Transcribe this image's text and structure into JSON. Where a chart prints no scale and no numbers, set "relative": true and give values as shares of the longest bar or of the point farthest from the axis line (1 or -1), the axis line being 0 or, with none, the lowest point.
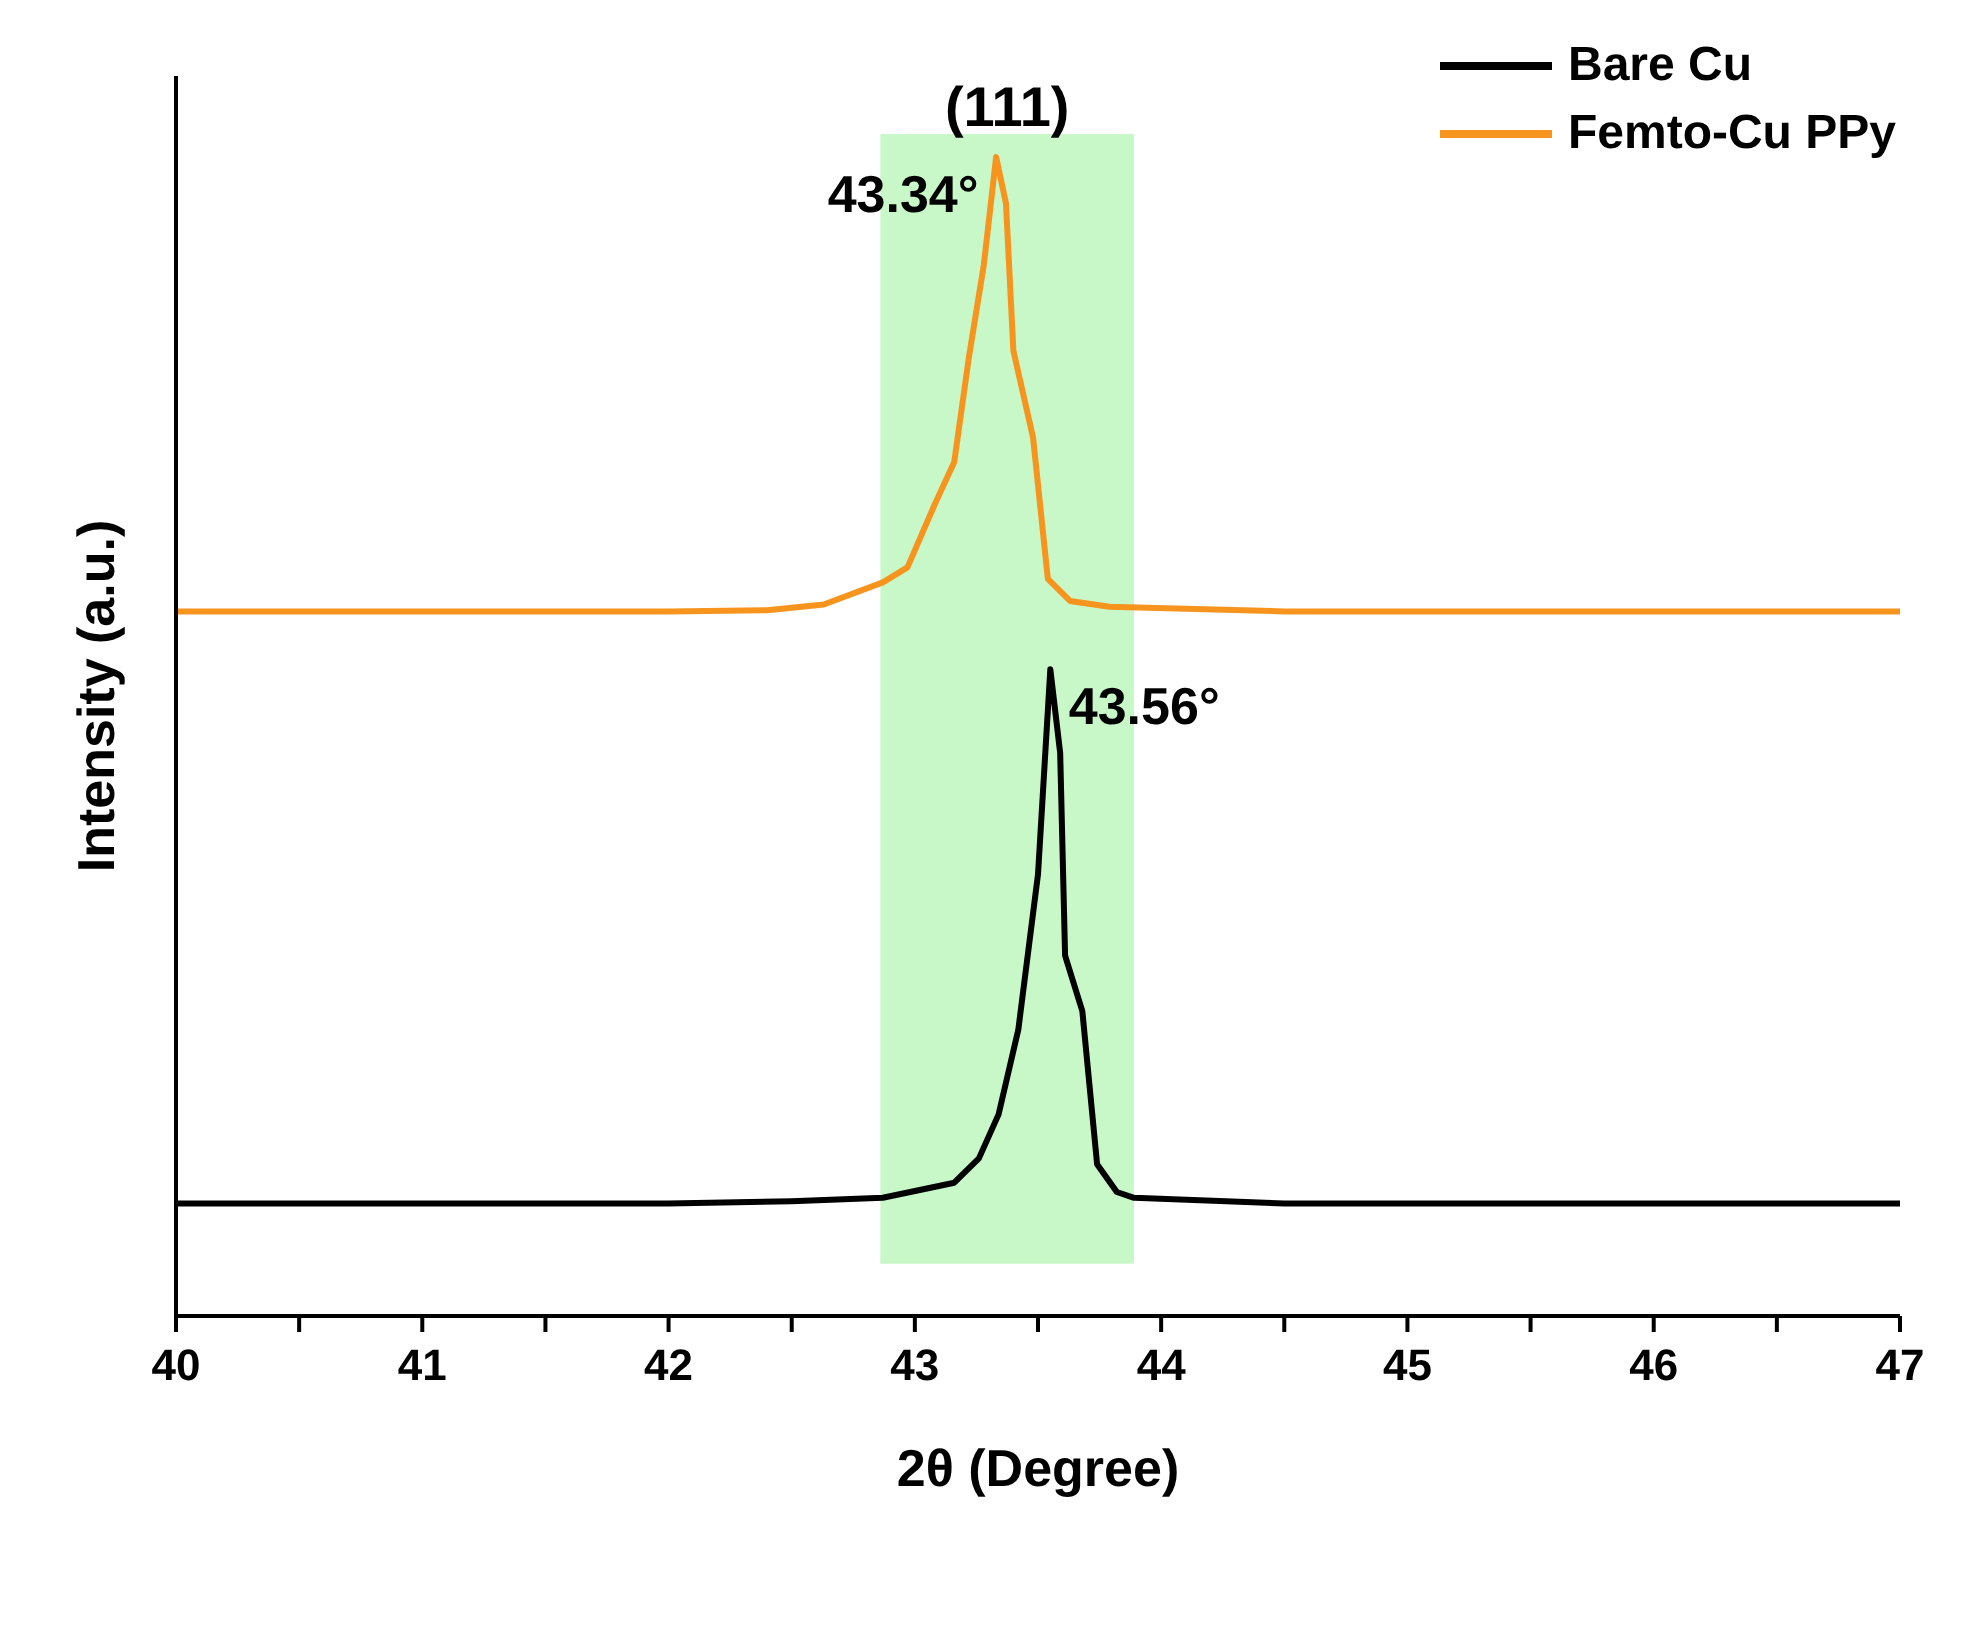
{
  "chart_data": {
    "type": "line",
    "xlabel": "2θ (Degree)",
    "ylabel": "Intensity (a.u.)",
    "relative": true,
    "xlim": [
      40,
      47
    ],
    "xticks": [
      40,
      {
        "value": 40.5,
        "label": null
      },
      41,
      {
        "value": 41.5,
        "label": null
      },
      42,
      {
        "value": 42.5,
        "label": null
      },
      43,
      {
        "value": 43.5,
        "label": null
      },
      44,
      {
        "value": 44.5,
        "label": null
      },
      45,
      {
        "value": 45.5,
        "label": null
      },
      46,
      {
        "value": 46.5,
        "label": null
      },
      47
    ],
    "series": [
      {
        "name": "Bare Cu",
        "color": "#000000",
        "x": [
          40,
          41,
          42,
          42.5,
          42.87,
          43.16,
          43.26,
          43.34,
          43.42,
          43.5,
          43.55,
          43.59,
          43.61,
          43.68,
          43.74,
          43.82,
          43.89,
          44.5,
          45,
          46,
          47
        ],
        "values": [
          0.097,
          0.097,
          0.097,
          0.099,
          0.102,
          0.115,
          0.136,
          0.174,
          0.247,
          0.381,
          0.558,
          0.486,
          0.311,
          0.263,
          0.131,
          0.107,
          0.102,
          0.097,
          0.097,
          0.097,
          0.097
        ]
      },
      {
        "name": "Femto-Cu PPy",
        "color": "#f7941d",
        "x": [
          40,
          41,
          42,
          42.4,
          42.63,
          42.87,
          42.97,
          43.08,
          43.16,
          43.22,
          43.28,
          43.33,
          43.37,
          43.4,
          43.48,
          43.54,
          43.63,
          43.79,
          44.5,
          45,
          46,
          47
        ],
        "values": [
          0.608,
          0.608,
          0.608,
          0.609,
          0.614,
          0.633,
          0.646,
          0.7,
          0.737,
          0.828,
          0.907,
          1,
          0.96,
          0.833,
          0.758,
          0.636,
          0.617,
          0.612,
          0.608,
          0.608,
          0.608,
          0.608
        ]
      }
    ],
    "bands": [
      {
        "axis": "x",
        "from": 42.86,
        "to": 43.89,
        "color": "#c8f7c8"
      }
    ],
    "annotations": [
      "(111)",
      {
        "text": "43.34°",
        "x": 43.34,
        "y": 1
      },
      {
        "text": "43.56°",
        "x": 43.56,
        "y": 0.558
      }
    ],
    "legend": "top right",
    "grid": false,
    "marker": "none",
    "line_style": "solid"
  }
}
